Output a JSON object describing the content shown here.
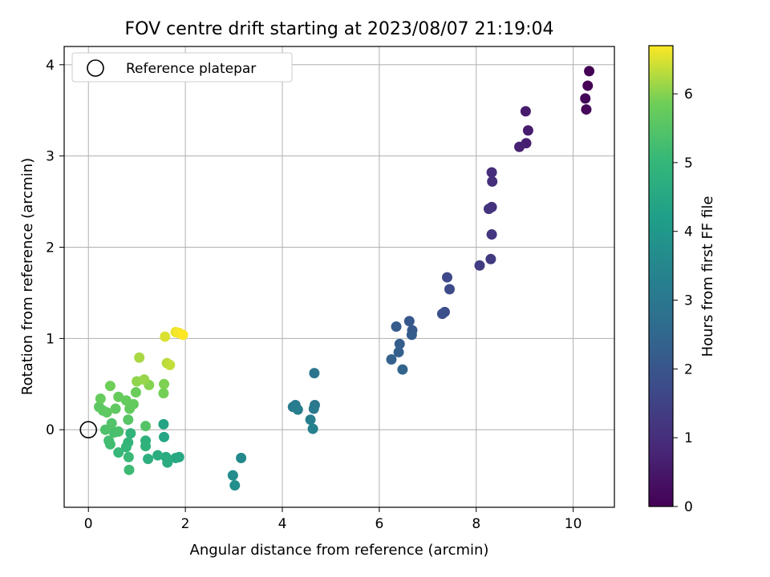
{
  "chart_data": {
    "type": "scatter",
    "title": "FOV centre drift starting at 2023/08/07 21:19:04",
    "xlabel": "Angular distance from reference (arcmin)",
    "ylabel": "Rotation from reference (arcmin)",
    "xlim": [
      -0.5,
      10.85
    ],
    "ylim": [
      -0.85,
      4.2
    ],
    "xticks": [
      0,
      2,
      4,
      6,
      8,
      10
    ],
    "yticks": [
      0,
      1,
      2,
      3,
      4
    ],
    "grid": true,
    "legend": {
      "position": "upper-left",
      "entries": [
        "Reference platepar"
      ]
    },
    "reference_point": {
      "x": 0,
      "y": 0
    },
    "colorbar": {
      "label": "Hours from first FF file",
      "colormap": "viridis",
      "range": [
        0,
        6.7
      ],
      "ticks": [
        0,
        1,
        2,
        3,
        4,
        5,
        6
      ]
    },
    "series": [
      {
        "values": [
          {
            "x": 10.33,
            "y": 3.93,
            "hours": 0.0
          },
          {
            "x": 10.3,
            "y": 3.77,
            "hours": 0.05
          },
          {
            "x": 10.25,
            "y": 3.63,
            "hours": 0.1
          },
          {
            "x": 10.27,
            "y": 3.51,
            "hours": 0.15
          },
          {
            "x": 9.02,
            "y": 3.49,
            "hours": 0.55
          },
          {
            "x": 9.07,
            "y": 3.28,
            "hours": 0.6
          },
          {
            "x": 9.03,
            "y": 3.14,
            "hours": 0.65
          },
          {
            "x": 8.89,
            "y": 3.1,
            "hours": 0.7
          },
          {
            "x": 8.32,
            "y": 2.82,
            "hours": 1.0
          },
          {
            "x": 8.33,
            "y": 2.72,
            "hours": 1.05
          },
          {
            "x": 8.32,
            "y": 2.44,
            "hours": 1.1
          },
          {
            "x": 8.26,
            "y": 2.42,
            "hours": 1.15
          },
          {
            "x": 8.32,
            "y": 2.14,
            "hours": 1.2
          },
          {
            "x": 8.3,
            "y": 1.87,
            "hours": 1.3
          },
          {
            "x": 8.07,
            "y": 1.8,
            "hours": 1.35
          },
          {
            "x": 7.4,
            "y": 1.67,
            "hours": 1.7
          },
          {
            "x": 7.45,
            "y": 1.54,
            "hours": 1.75
          },
          {
            "x": 7.35,
            "y": 1.29,
            "hours": 1.8
          },
          {
            "x": 7.3,
            "y": 1.27,
            "hours": 1.85
          },
          {
            "x": 6.62,
            "y": 1.19,
            "hours": 2.05
          },
          {
            "x": 6.68,
            "y": 1.09,
            "hours": 2.1
          },
          {
            "x": 6.35,
            "y": 1.13,
            "hours": 2.15
          },
          {
            "x": 6.67,
            "y": 1.04,
            "hours": 2.2
          },
          {
            "x": 6.42,
            "y": 0.94,
            "hours": 2.25
          },
          {
            "x": 6.4,
            "y": 0.85,
            "hours": 2.3
          },
          {
            "x": 6.25,
            "y": 0.77,
            "hours": 2.35
          },
          {
            "x": 6.48,
            "y": 0.66,
            "hours": 2.4
          },
          {
            "x": 4.66,
            "y": 0.62,
            "hours": 2.95
          },
          {
            "x": 4.67,
            "y": 0.27,
            "hours": 3.0
          },
          {
            "x": 4.65,
            "y": 0.23,
            "hours": 3.05
          },
          {
            "x": 4.27,
            "y": 0.27,
            "hours": 3.1
          },
          {
            "x": 4.22,
            "y": 0.25,
            "hours": 3.15
          },
          {
            "x": 4.32,
            "y": 0.22,
            "hours": 3.2
          },
          {
            "x": 4.58,
            "y": 0.11,
            "hours": 3.25
          },
          {
            "x": 4.63,
            "y": 0.01,
            "hours": 3.3
          },
          {
            "x": 3.15,
            "y": -0.31,
            "hours": 3.55
          },
          {
            "x": 2.98,
            "y": -0.5,
            "hours": 3.65
          },
          {
            "x": 3.02,
            "y": -0.61,
            "hours": 3.7
          },
          {
            "x": 1.55,
            "y": 0.06,
            "hours": 4.4
          },
          {
            "x": 1.56,
            "y": -0.08,
            "hours": 4.45
          },
          {
            "x": 1.87,
            "y": -0.3,
            "hours": 4.5
          },
          {
            "x": 1.8,
            "y": -0.31,
            "hours": 4.55
          },
          {
            "x": 1.6,
            "y": -0.3,
            "hours": 4.6
          },
          {
            "x": 1.63,
            "y": -0.36,
            "hours": 4.65
          },
          {
            "x": 1.43,
            "y": -0.28,
            "hours": 4.7
          },
          {
            "x": 1.23,
            "y": -0.32,
            "hours": 4.75
          },
          {
            "x": 1.18,
            "y": -0.12,
            "hours": 4.8
          },
          {
            "x": 1.18,
            "y": -0.18,
            "hours": 4.85
          },
          {
            "x": 0.87,
            "y": -0.04,
            "hours": 4.9
          },
          {
            "x": 0.82,
            "y": -0.14,
            "hours": 4.95
          },
          {
            "x": 0.78,
            "y": -0.19,
            "hours": 5.0
          },
          {
            "x": 0.62,
            "y": -0.25,
            "hours": 5.05
          },
          {
            "x": 0.83,
            "y": -0.3,
            "hours": 5.1
          },
          {
            "x": 0.84,
            "y": -0.44,
            "hours": 5.15
          },
          {
            "x": 0.45,
            "y": -0.16,
            "hours": 5.2
          },
          {
            "x": 0.42,
            "y": -0.12,
            "hours": 5.25
          },
          {
            "x": 0.53,
            "y": -0.03,
            "hours": 5.3
          },
          {
            "x": 0.62,
            "y": -0.02,
            "hours": 5.35
          },
          {
            "x": 0.35,
            "y": 0.0,
            "hours": 5.4
          },
          {
            "x": 0.48,
            "y": 0.07,
            "hours": 5.45
          },
          {
            "x": 1.18,
            "y": 0.04,
            "hours": 5.5
          },
          {
            "x": 0.82,
            "y": 0.11,
            "hours": 5.55
          },
          {
            "x": 0.22,
            "y": 0.25,
            "hours": 5.6
          },
          {
            "x": 0.3,
            "y": 0.21,
            "hours": 5.62
          },
          {
            "x": 0.38,
            "y": 0.19,
            "hours": 5.64
          },
          {
            "x": 0.56,
            "y": 0.23,
            "hours": 5.66
          },
          {
            "x": 0.85,
            "y": 0.23,
            "hours": 5.68
          },
          {
            "x": 0.93,
            "y": 0.28,
            "hours": 5.7
          },
          {
            "x": 0.78,
            "y": 0.32,
            "hours": 5.72
          },
          {
            "x": 0.25,
            "y": 0.34,
            "hours": 5.74
          },
          {
            "x": 0.62,
            "y": 0.36,
            "hours": 5.76
          },
          {
            "x": 0.98,
            "y": 0.41,
            "hours": 5.8
          },
          {
            "x": 0.45,
            "y": 0.48,
            "hours": 5.85
          },
          {
            "x": 1.55,
            "y": 0.4,
            "hours": 5.9
          },
          {
            "x": 1.56,
            "y": 0.5,
            "hours": 5.95
          },
          {
            "x": 1.25,
            "y": 0.49,
            "hours": 6.0
          },
          {
            "x": 1.0,
            "y": 0.53,
            "hours": 6.05
          },
          {
            "x": 1.15,
            "y": 0.55,
            "hours": 6.1
          },
          {
            "x": 1.05,
            "y": 0.79,
            "hours": 6.2
          },
          {
            "x": 1.62,
            "y": 0.73,
            "hours": 6.3
          },
          {
            "x": 1.68,
            "y": 0.71,
            "hours": 6.35
          },
          {
            "x": 1.58,
            "y": 1.02,
            "hours": 6.5
          },
          {
            "x": 1.8,
            "y": 1.07,
            "hours": 6.6
          },
          {
            "x": 1.87,
            "y": 1.06,
            "hours": 6.65
          },
          {
            "x": 1.95,
            "y": 1.04,
            "hours": 6.7
          }
        ]
      }
    ]
  }
}
